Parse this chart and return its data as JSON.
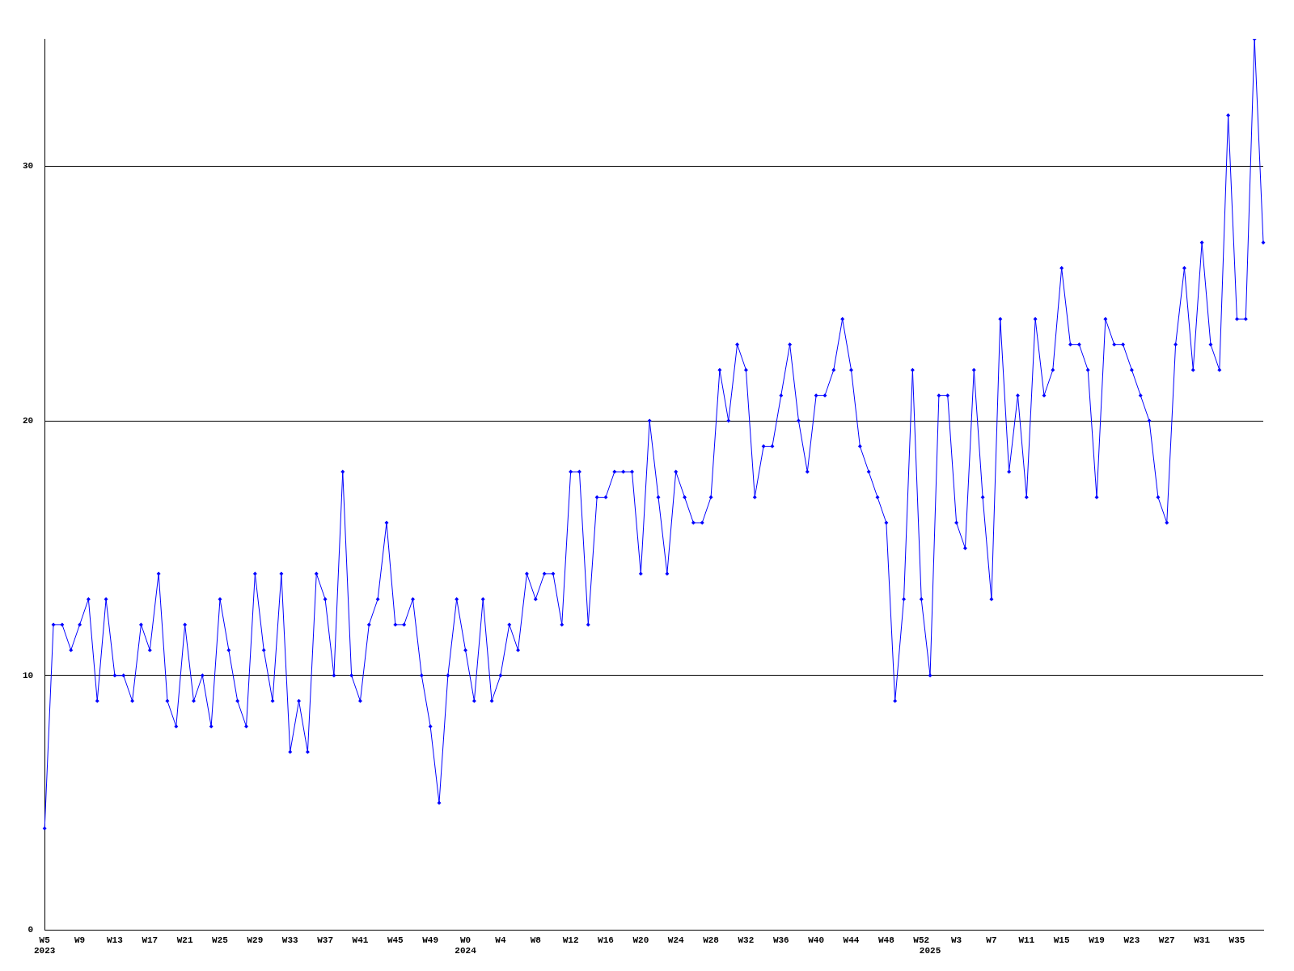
{
  "chart_data": {
    "type": "line",
    "categories": [
      "W5\n2023",
      null,
      null,
      null,
      "W9",
      null,
      null,
      null,
      "W13",
      null,
      null,
      null,
      "W17",
      null,
      null,
      null,
      "W21",
      null,
      null,
      null,
      "W25",
      null,
      null,
      null,
      "W29",
      null,
      null,
      null,
      "W33",
      null,
      null,
      null,
      "W37",
      null,
      null,
      null,
      "W41",
      null,
      null,
      null,
      "W45",
      null,
      null,
      null,
      "W49",
      null,
      null,
      null,
      "W0\n2024",
      null,
      null,
      null,
      "W4",
      null,
      null,
      null,
      "W8",
      null,
      null,
      null,
      "W12",
      null,
      null,
      null,
      "W16",
      null,
      null,
      null,
      "W20",
      null,
      null,
      null,
      "W24",
      null,
      null,
      null,
      "W28",
      null,
      null,
      null,
      "W32",
      null,
      null,
      null,
      "W36",
      null,
      null,
      null,
      "W40",
      null,
      null,
      null,
      "W44",
      null,
      null,
      null,
      "W48",
      null,
      null,
      null,
      "W52",
      "\n2025",
      null,
      null,
      "W3",
      null,
      null,
      null,
      "W7",
      null,
      null,
      null,
      "W11",
      null,
      null,
      null,
      "W15",
      null,
      null,
      null,
      "W19",
      null,
      null,
      null,
      "W23",
      null,
      null,
      null,
      "W27",
      null,
      null,
      null,
      "W31",
      null,
      null,
      null,
      "W35",
      null,
      null,
      null
    ],
    "series": [
      {
        "color": "#0000ff",
        "values": [
          4,
          12,
          12,
          11,
          12,
          13,
          9,
          13,
          10,
          10,
          9,
          12,
          11,
          14,
          9,
          8,
          12,
          9,
          10,
          8,
          13,
          11,
          9,
          8,
          14,
          11,
          9,
          14,
          7,
          9,
          7,
          14,
          13,
          10,
          18,
          10,
          9,
          12,
          13,
          16,
          12,
          12,
          13,
          10,
          8,
          5,
          10,
          13,
          11,
          9,
          13,
          9,
          10,
          12,
          11,
          14,
          13,
          14,
          14,
          12,
          18,
          18,
          12,
          17,
          17,
          18,
          18,
          18,
          14,
          20,
          17,
          14,
          18,
          17,
          16,
          16,
          17,
          22,
          20,
          23,
          22,
          17,
          19,
          19,
          21,
          23,
          20,
          18,
          21,
          21,
          22,
          24,
          22,
          19,
          18,
          17,
          16,
          9,
          13,
          22,
          13,
          10,
          21,
          21,
          16,
          15,
          22,
          17,
          13,
          24,
          18,
          21,
          17,
          24,
          21,
          22,
          26,
          23,
          23,
          22,
          17,
          24,
          23,
          23,
          22,
          21,
          20,
          17,
          16,
          23,
          26,
          22,
          27,
          23,
          22,
          32,
          24,
          24,
          35,
          27
        ]
      }
    ],
    "ylim": [
      0,
      35
    ],
    "yticks": [
      0,
      10,
      20,
      30
    ],
    "grid": "y",
    "legend": false,
    "marker": "diamond",
    "line_style": "solid"
  }
}
